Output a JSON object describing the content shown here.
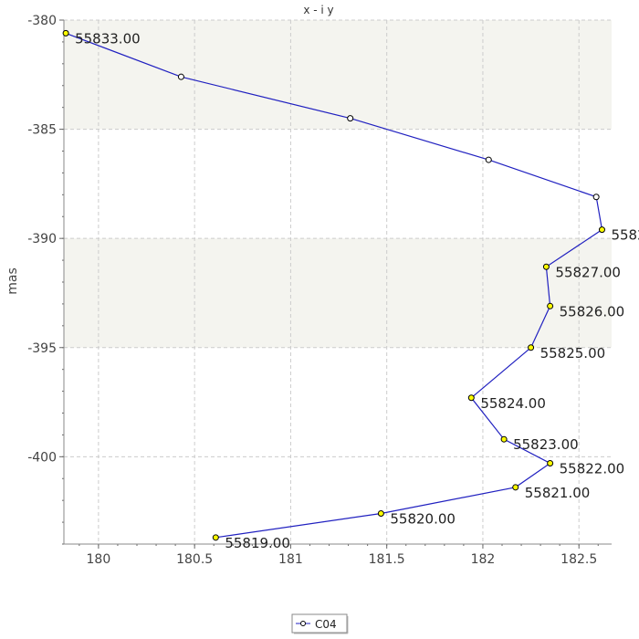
{
  "chart_data": {
    "type": "line",
    "title": "x - i y",
    "xlabel": "",
    "ylabel": "mas",
    "xlim": [
      179.82,
      182.67
    ],
    "ylim": [
      -404.0,
      -380.0
    ],
    "x_ticks": [
      "180",
      "180.5",
      "181",
      "181.5",
      "182",
      "182.5"
    ],
    "y_ticks": [
      "-380",
      "-385",
      "-390",
      "-395",
      "-400"
    ],
    "grid": true,
    "shaded_bands": [
      [
        -385,
        -380
      ],
      [
        -395,
        -390
      ]
    ],
    "legend_position": "bottom-center",
    "colors": {
      "line": "#2020c0",
      "point_labeled": "#ffff00",
      "point_unlabeled": "#ffffff",
      "band": "#f4f4ef",
      "grid": "#cccccc"
    },
    "series": [
      {
        "name": "C04",
        "points": [
          {
            "x": 180.61,
            "y": -403.7,
            "label": "55819.00"
          },
          {
            "x": 181.47,
            "y": -402.6,
            "label": "55820.00"
          },
          {
            "x": 182.17,
            "y": -401.4,
            "label": "55821.00"
          },
          {
            "x": 182.35,
            "y": -400.3,
            "label": "55822.00"
          },
          {
            "x": 182.11,
            "y": -399.2,
            "label": "55823.00"
          },
          {
            "x": 181.94,
            "y": -397.3,
            "label": "55824.00"
          },
          {
            "x": 182.25,
            "y": -395.0,
            "label": "55825.00"
          },
          {
            "x": 182.35,
            "y": -393.1,
            "label": "55826.00"
          },
          {
            "x": 182.33,
            "y": -391.3,
            "label": "55827.00"
          },
          {
            "x": 182.62,
            "y": -389.6,
            "label": "5582"
          },
          {
            "x": 182.59,
            "y": -388.1,
            "label": ""
          },
          {
            "x": 182.03,
            "y": -386.4,
            "label": ""
          },
          {
            "x": 181.31,
            "y": -384.5,
            "label": ""
          },
          {
            "x": 180.43,
            "y": -382.6,
            "label": ""
          },
          {
            "x": 179.83,
            "y": -380.6,
            "label": "55833.00"
          }
        ]
      }
    ]
  }
}
